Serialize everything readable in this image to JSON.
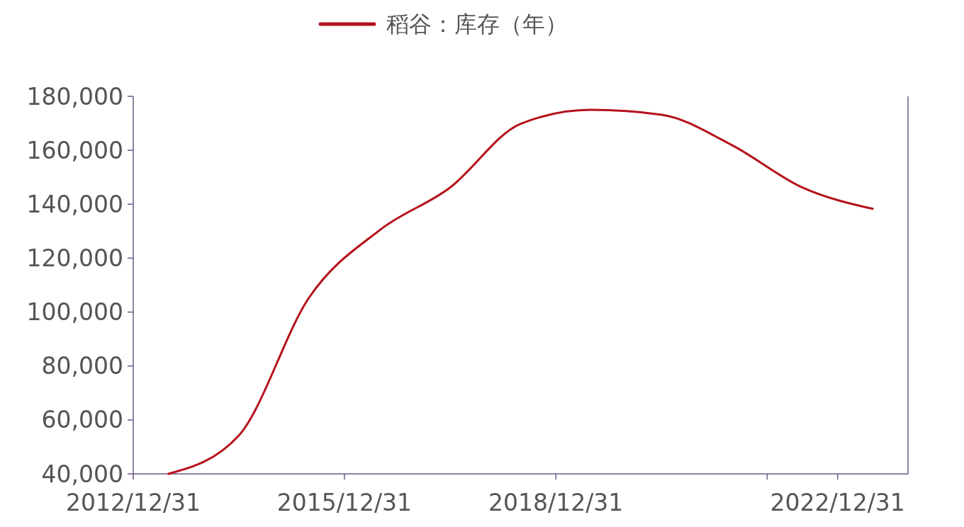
{
  "chart_data": {
    "type": "line",
    "legend": "top",
    "grid": false,
    "x": [
      "2013-07-01",
      "2014-07-01",
      "2015-07-01",
      "2016-07-01",
      "2017-07-01",
      "2018-07-01",
      "2019-07-01",
      "2020-07-01",
      "2021-07-01",
      "2022-07-01",
      "2023-07-01"
    ],
    "series": [
      {
        "name": "稻谷：库存（年）",
        "color": "#b5121b",
        "values": [
          40000,
          54200,
          105400,
          130400,
          146200,
          169800,
          175000,
          173200,
          161900,
          146200,
          138300
        ]
      }
    ],
    "xlim": [
      "2012-12-31",
      "2023-12-31"
    ],
    "xticks": [
      {
        "value": "2012-12-31",
        "label": "2012/12/31"
      },
      {
        "value": "2015-12-31",
        "label": "2015/12/31"
      },
      {
        "value": "2018-12-31",
        "label": "2018/12/31"
      },
      {
        "value": "2021-12-31",
        "label": null
      },
      {
        "value": "2022-12-31",
        "label": "2022/12/31"
      }
    ],
    "ylim": [
      40000,
      180000
    ],
    "yticks": [
      {
        "value": 40000,
        "label": "40,000"
      },
      {
        "value": 60000,
        "label": "60,000"
      },
      {
        "value": 80000,
        "label": "80,000"
      },
      {
        "value": 100000,
        "label": "100,000"
      },
      {
        "value": 120000,
        "label": "120,000"
      },
      {
        "value": 140000,
        "label": "140,000"
      },
      {
        "value": 160000,
        "label": "160,000"
      },
      {
        "value": 180000,
        "label": "180,000"
      }
    ]
  }
}
